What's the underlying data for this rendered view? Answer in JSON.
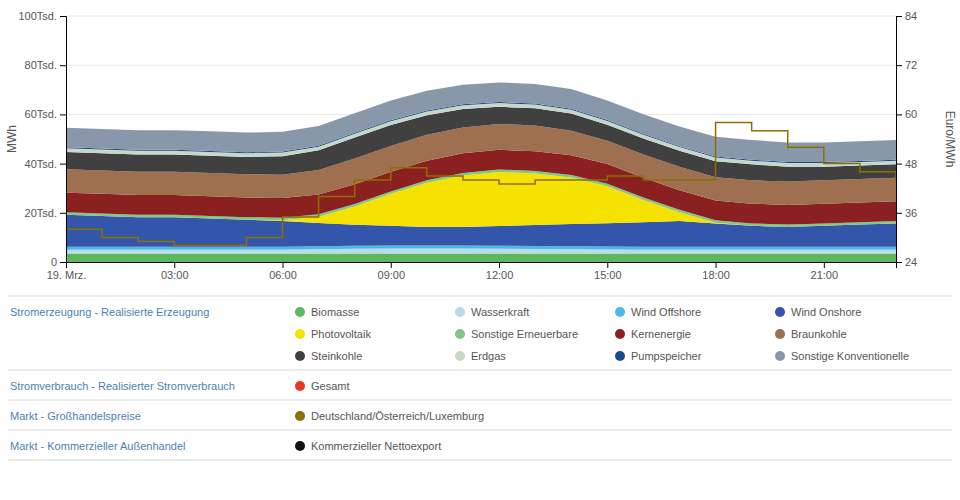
{
  "chart_data": {
    "type": "area",
    "stacked": true,
    "grid": true,
    "x": [
      0,
      1,
      2,
      3,
      4,
      5,
      6,
      7,
      8,
      9,
      10,
      11,
      12,
      13,
      14,
      15,
      16,
      17,
      18,
      19,
      20,
      21,
      22,
      23
    ],
    "xlim": [
      0,
      23
    ],
    "xticks": [
      {
        "value": 0,
        "label": "19. Mrz."
      },
      {
        "value": 3,
        "label": "03:00"
      },
      {
        "value": 6,
        "label": "06:00"
      },
      {
        "value": 9,
        "label": "09:00"
      },
      {
        "value": 12,
        "label": "12:00"
      },
      {
        "value": 15,
        "label": "15:00"
      },
      {
        "value": 18,
        "label": "18:00"
      },
      {
        "value": 21,
        "label": "21:00"
      }
    ],
    "ylim": [
      0,
      100000
    ],
    "yticks": [
      0,
      {
        "value": 20000,
        "label": "20Tsd."
      },
      {
        "value": 40000,
        "label": "40Tsd."
      },
      {
        "value": 60000,
        "label": "60Tsd."
      },
      {
        "value": 80000,
        "label": "80Tsd."
      },
      {
        "value": 100000,
        "label": "100Tsd."
      }
    ],
    "ylabel": "MWh",
    "y2lim": [
      24,
      84
    ],
    "y2ticks": [
      24,
      36,
      48,
      60,
      72,
      84
    ],
    "y2label": "Euro/MWh",
    "series": [
      {
        "name": "Biomasse",
        "type": "area",
        "color": "#5cb85c",
        "values": [
          3500,
          3500,
          3500,
          3500,
          3500,
          3500,
          3500,
          3500,
          3500,
          3500,
          3500,
          3500,
          3500,
          3500,
          3500,
          3500,
          3500,
          3500,
          3500,
          3500,
          3500,
          3500,
          3500,
          3500
        ]
      },
      {
        "name": "Wasserkraft",
        "type": "area",
        "color": "#b8dce8",
        "values": [
          1500,
          1500,
          1500,
          1500,
          1500,
          1500,
          1500,
          1700,
          1900,
          2000,
          2000,
          2000,
          1900,
          1800,
          1700,
          1600,
          1500,
          1500,
          1500,
          1500,
          1500,
          1500,
          1500,
          1500
        ]
      },
      {
        "name": "Wind Offshore",
        "type": "area",
        "color": "#4db8e8",
        "values": [
          1200,
          1200,
          1200,
          1200,
          1200,
          1200,
          1200,
          1200,
          1200,
          1200,
          1200,
          1200,
          1200,
          1200,
          1200,
          1200,
          1200,
          1200,
          1200,
          1200,
          1200,
          1200,
          1200,
          1200
        ]
      },
      {
        "name": "Wind Onshore",
        "type": "area",
        "color": "#3355aa",
        "values": [
          13000,
          12500,
          12000,
          12000,
          11500,
          11000,
          10500,
          9500,
          8500,
          8000,
          7500,
          7500,
          8000,
          8500,
          9000,
          9500,
          10000,
          10500,
          9500,
          8500,
          8000,
          8500,
          9000,
          9500
        ]
      },
      {
        "name": "Photovoltaik",
        "type": "area",
        "color": "#f5e200",
        "values": [
          0,
          0,
          0,
          0,
          0,
          0,
          300,
          2500,
          7500,
          13000,
          18000,
          21000,
          22000,
          21000,
          19000,
          15000,
          9000,
          3500,
          300,
          0,
          0,
          0,
          0,
          0
        ]
      },
      {
        "name": "Sonstige Erneuerbare",
        "type": "area",
        "color": "#82c882",
        "values": [
          1000,
          1000,
          1000,
          1000,
          1000,
          1000,
          1000,
          1000,
          1000,
          1000,
          1000,
          1000,
          1000,
          1000,
          1000,
          1000,
          1000,
          1000,
          1000,
          1000,
          1000,
          1000,
          1000,
          1000
        ]
      },
      {
        "name": "Kernenergie",
        "type": "area",
        "color": "#8b2020",
        "values": [
          8000,
          8000,
          8000,
          8000,
          8000,
          8000,
          8000,
          8000,
          8000,
          8000,
          8000,
          8000,
          8000,
          8000,
          8000,
          8000,
          8000,
          8000,
          8000,
          8000,
          8000,
          8000,
          8000,
          8000
        ]
      },
      {
        "name": "Braunkohle",
        "type": "area",
        "color": "#9e7050",
        "values": [
          9500,
          9500,
          9500,
          9500,
          9500,
          9500,
          9500,
          10000,
          10500,
          10500,
          10500,
          10500,
          10500,
          10500,
          10000,
          9500,
          9500,
          9500,
          9500,
          9500,
          9500,
          9500,
          9500,
          9500
        ]
      },
      {
        "name": "Steinkohle",
        "type": "area",
        "color": "#404040",
        "values": [
          7000,
          7000,
          7000,
          7000,
          7000,
          7000,
          7500,
          8000,
          8500,
          8500,
          8000,
          7500,
          7000,
          7000,
          7000,
          6500,
          6500,
          6500,
          6500,
          6500,
          6000,
          5500,
          5500,
          5500
        ]
      },
      {
        "name": "Erdgas",
        "type": "area",
        "color": "#c8d8c8",
        "values": [
          1500,
          1500,
          1500,
          1500,
          1500,
          1500,
          1500,
          1500,
          1500,
          1500,
          1500,
          1500,
          1500,
          1500,
          1500,
          1500,
          1500,
          1500,
          1500,
          1500,
          1500,
          1500,
          1500,
          1500
        ]
      },
      {
        "name": "Pumpspeicher",
        "type": "area",
        "color": "#1a4a8a",
        "values": [
          400,
          400,
          400,
          400,
          400,
          400,
          400,
          400,
          400,
          400,
          400,
          400,
          400,
          400,
          400,
          400,
          400,
          400,
          400,
          400,
          400,
          400,
          400,
          400
        ]
      },
      {
        "name": "Sonstige Konventionelle",
        "type": "area",
        "color": "#8898aa",
        "values": [
          8000,
          8000,
          8000,
          8000,
          8000,
          8000,
          8000,
          8000,
          8000,
          8000,
          8000,
          8000,
          8000,
          8000,
          8000,
          8000,
          8000,
          8000,
          8000,
          8000,
          8000,
          8000,
          8000,
          8000
        ]
      },
      {
        "name": "Deutschland/Österreich/Luxemburg",
        "type": "step",
        "axis": "y2",
        "color": "#8B7000",
        "values": [
          32,
          30,
          29,
          28,
          28,
          30,
          35,
          40,
          44,
          47,
          45,
          44,
          43,
          44,
          44,
          45,
          44,
          44,
          58,
          56,
          52,
          48,
          46,
          44
        ]
      }
    ],
    "annotations": [
      {
        "text": "Stromerzeugung - Realisierte Erzeugung"
      },
      {
        "text": "Stromverbrauch - Realisierter Stromverbrauch",
        "entries": [
          {
            "name": "Gesamt",
            "color": "#e83820"
          }
        ]
      },
      {
        "text": "Markt - Großhandelspreise"
      },
      {
        "text": "Markt - Kommerzieller Außenhandel",
        "entries": [
          {
            "name": "Kommerzieller Nettoexport",
            "color": "#111111"
          }
        ]
      }
    ]
  }
}
